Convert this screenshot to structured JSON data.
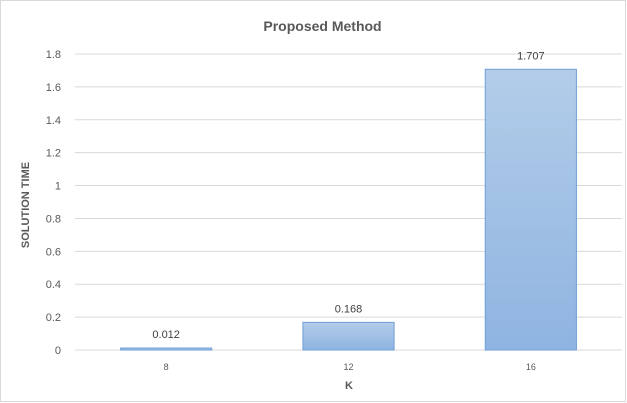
{
  "chart_data": {
    "type": "bar",
    "title": "Proposed Method",
    "xlabel": "K",
    "ylabel": "SOLUTION TIME",
    "categories": [
      "8",
      "12",
      "16"
    ],
    "values": [
      0.012,
      0.168,
      1.707
    ],
    "data_labels": [
      "0.012",
      "0.168",
      "1.707"
    ],
    "ylim": [
      0,
      1.8
    ],
    "yticks": [
      "0",
      "0.2",
      "0.4",
      "0.6",
      "0.8",
      "1",
      "1.2",
      "1.4",
      "1.6",
      "1.8"
    ],
    "grid": true,
    "bar_color_top": "#b3cde9",
    "bar_color_bottom": "#8fb4e1",
    "bar_border": "#6f9fd8",
    "gridline_color": "#d9d9d9"
  }
}
